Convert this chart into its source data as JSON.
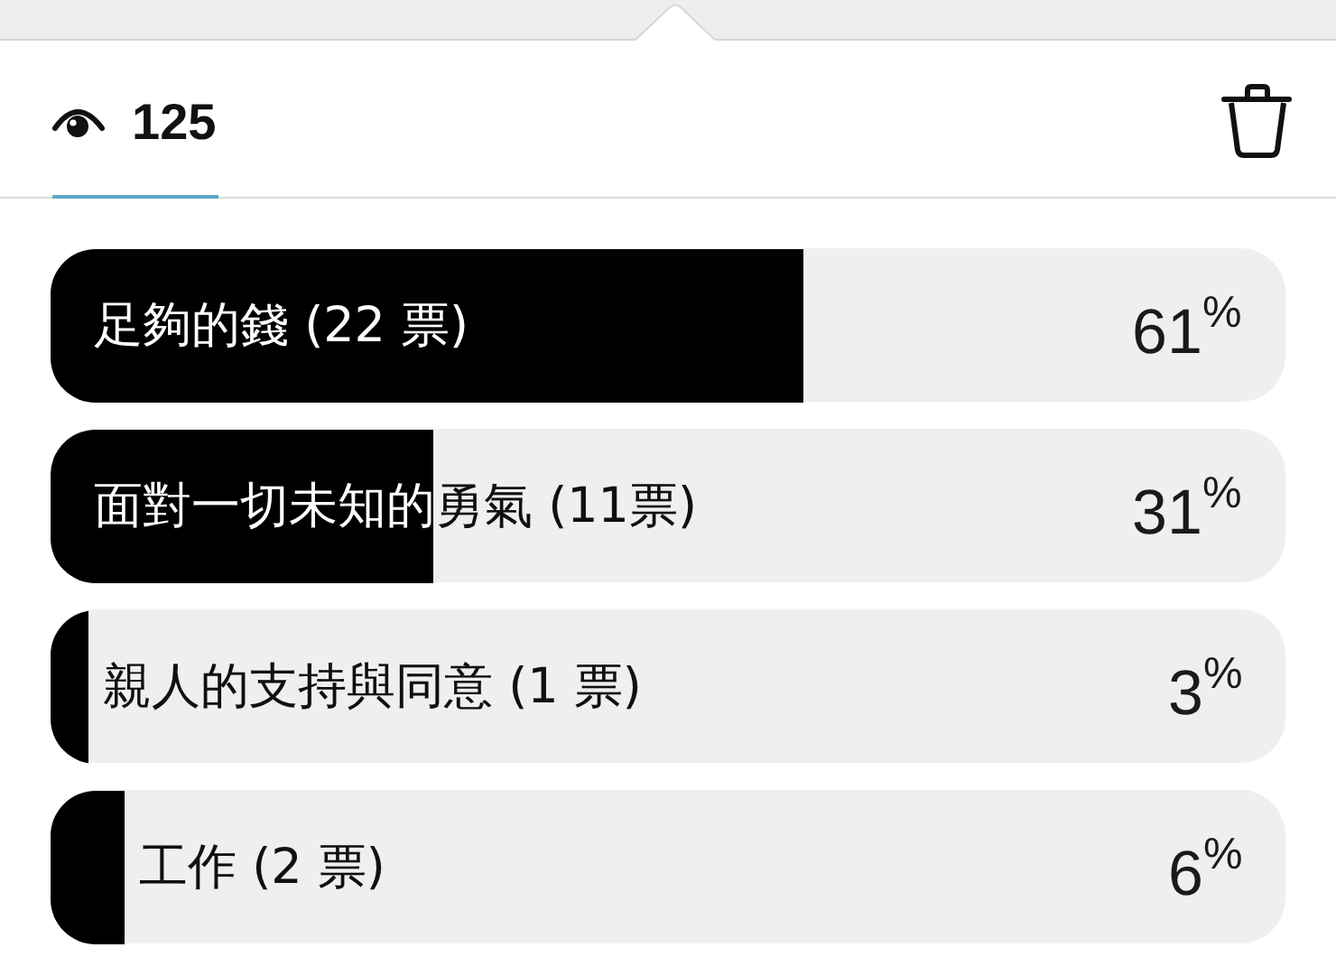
{
  "chart_data": {
    "type": "bar",
    "orientation": "horizontal",
    "categories": [
      "足夠的錢 (22 票)",
      "面對一切未知的勇氣 (11票)",
      "親人的支持與同意 (1 票)",
      "工作 (2 票)"
    ],
    "values": [
      61,
      31,
      3,
      6
    ],
    "color": "#000000",
    "value_labels": [
      "61$^{%}$",
      "31$^{%}$",
      "3$^{%}$",
      "6$^{%}$"
    ],
    "xlim": [
      0,
      100
    ],
    "tick_labels": "y",
    "annotations": [
      "125"
    ]
  }
}
